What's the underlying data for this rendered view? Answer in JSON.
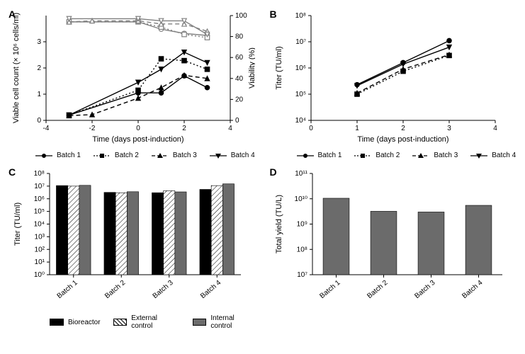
{
  "figure": {
    "background_color": "#ffffff",
    "label_fontsize": 11,
    "tick_fontsize": 10,
    "panel_label_fontsize": 14,
    "colors": {
      "black": "#000000",
      "gray": "#808080",
      "dark_gray_fill": "#6b6b6b"
    }
  },
  "panelA": {
    "label": "A",
    "type": "line-dual-axis",
    "xlabel": "Time (days post-induction)",
    "ylabel_left": "Viable cell count (× 10⁶ cells/ml)",
    "ylabel_right": "Viability (%)",
    "xlim": [
      -4,
      4
    ],
    "xticks": [
      -4,
      -2,
      0,
      2,
      4
    ],
    "yleft_lim": [
      0,
      4
    ],
    "yleft_ticks": [
      0,
      1,
      2,
      3
    ],
    "yright_lim": [
      0,
      100
    ],
    "yright_ticks": [
      0,
      20,
      40,
      60,
      80,
      100
    ],
    "series_count": [
      {
        "name": "Batch 1",
        "marker": "circle",
        "dash": "solid",
        "color": "#000000",
        "x": [
          -3,
          0,
          1,
          2,
          3
        ],
        "y": [
          0.2,
          1.05,
          1.05,
          1.7,
          1.25
        ]
      },
      {
        "name": "Batch 2",
        "marker": "square",
        "dash": "dotted",
        "color": "#000000",
        "x": [
          -3,
          0,
          1,
          2,
          3
        ],
        "y": [
          0.2,
          1.15,
          2.35,
          2.28,
          1.95
        ]
      },
      {
        "name": "Batch 3",
        "marker": "triangle",
        "dash": "dashed",
        "color": "#000000",
        "x": [
          -3,
          -2,
          0,
          1,
          2,
          3
        ],
        "y": [
          0.18,
          0.22,
          0.85,
          1.25,
          1.72,
          1.6
        ]
      },
      {
        "name": "Batch 4",
        "marker": "inv-triangle",
        "dash": "solid",
        "color": "#000000",
        "x": [
          -3,
          0,
          1,
          2,
          3
        ],
        "y": [
          0.2,
          1.45,
          1.95,
          2.6,
          2.2
        ]
      }
    ],
    "series_viab": [
      {
        "name": "Batch 1",
        "marker": "circle-open",
        "dash": "solid",
        "color": "#808080",
        "x": [
          -3,
          0,
          1,
          2,
          3
        ],
        "y": [
          94,
          94,
          87,
          83,
          81
        ]
      },
      {
        "name": "Batch 2",
        "marker": "square-open",
        "dash": "dotted",
        "color": "#808080",
        "x": [
          -3,
          0,
          1,
          2,
          3
        ],
        "y": [
          94,
          94,
          89,
          82,
          79
        ]
      },
      {
        "name": "Batch 3",
        "marker": "triangle-open",
        "dash": "dashed",
        "color": "#808080",
        "x": [
          -3,
          -2,
          0,
          1,
          2,
          3
        ],
        "y": [
          94,
          95,
          95,
          92,
          92,
          85
        ]
      },
      {
        "name": "Batch 4",
        "marker": "inv-triangle-open",
        "dash": "solid",
        "color": "#808080",
        "x": [
          -3,
          0,
          1,
          2,
          3
        ],
        "y": [
          97,
          97,
          95,
          95,
          82
        ]
      }
    ],
    "legend": [
      "Batch 1",
      "Batch 2",
      "Batch 3",
      "Batch 4"
    ]
  },
  "panelB": {
    "label": "B",
    "type": "line-log",
    "xlabel": "Time (days post-induction)",
    "ylabel": "Titer (TU/ml)",
    "xlim": [
      0,
      4
    ],
    "xticks": [
      0,
      1,
      2,
      3,
      4
    ],
    "ylim_exp": [
      4,
      8
    ],
    "yticks_exp": [
      4,
      5,
      6,
      7,
      8
    ],
    "series": [
      {
        "name": "Batch 1",
        "marker": "circle",
        "dash": "solid",
        "color": "#000000",
        "x": [
          1,
          2,
          3
        ],
        "y": [
          230000,
          1600000,
          11000000
        ]
      },
      {
        "name": "Batch 2",
        "marker": "square",
        "dash": "dotted",
        "color": "#000000",
        "x": [
          1,
          2,
          3
        ],
        "y": [
          100000,
          750000,
          3000000
        ]
      },
      {
        "name": "Batch 3",
        "marker": "triangle",
        "dash": "dashed",
        "color": "#000000",
        "x": [
          1,
          2,
          3
        ],
        "y": [
          110000,
          900000,
          3200000
        ]
      },
      {
        "name": "Batch 4",
        "marker": "inv-triangle",
        "dash": "solid",
        "color": "#000000",
        "x": [
          1,
          2,
          3
        ],
        "y": [
          210000,
          1400000,
          6200000
        ]
      }
    ],
    "legend": [
      "Batch 1",
      "Batch 2",
      "Batch 3",
      "Batch 4"
    ]
  },
  "panelC": {
    "label": "C",
    "type": "grouped-bar-log",
    "ylabel": "Titer (TU/ml)",
    "ylim_exp": [
      0,
      8
    ],
    "yticks_exp": [
      0,
      1,
      2,
      3,
      4,
      5,
      6,
      7,
      8
    ],
    "categories": [
      "Batch 1",
      "Batch 2",
      "Batch 3",
      "Batch 4"
    ],
    "groups": [
      {
        "name": "Bioreactor",
        "fill": "#000000",
        "pattern": "solid"
      },
      {
        "name": "External control",
        "fill": "#ffffff",
        "pattern": "hatch"
      },
      {
        "name": "Internal control",
        "fill": "#6b6b6b",
        "pattern": "solid"
      }
    ],
    "values": [
      [
        11000000,
        10000000,
        11500000
      ],
      [
        3200000,
        3000000,
        3600000
      ],
      [
        3000000,
        4300000,
        3500000
      ],
      [
        5500000,
        11000000,
        15000000
      ]
    ],
    "bar_width": 0.24
  },
  "panelD": {
    "label": "D",
    "type": "bar-log",
    "ylabel": "Total yield (TU/L)",
    "ylim_exp": [
      7,
      11
    ],
    "yticks_exp": [
      7,
      8,
      9,
      10,
      11
    ],
    "categories": [
      "Batch 1",
      "Batch 2",
      "Batch 3",
      "Batch 4"
    ],
    "values": [
      10500000000,
      3200000000,
      3000000000,
      5500000000
    ],
    "bar_fill": "#6b6b6b",
    "bar_width": 0.55
  }
}
